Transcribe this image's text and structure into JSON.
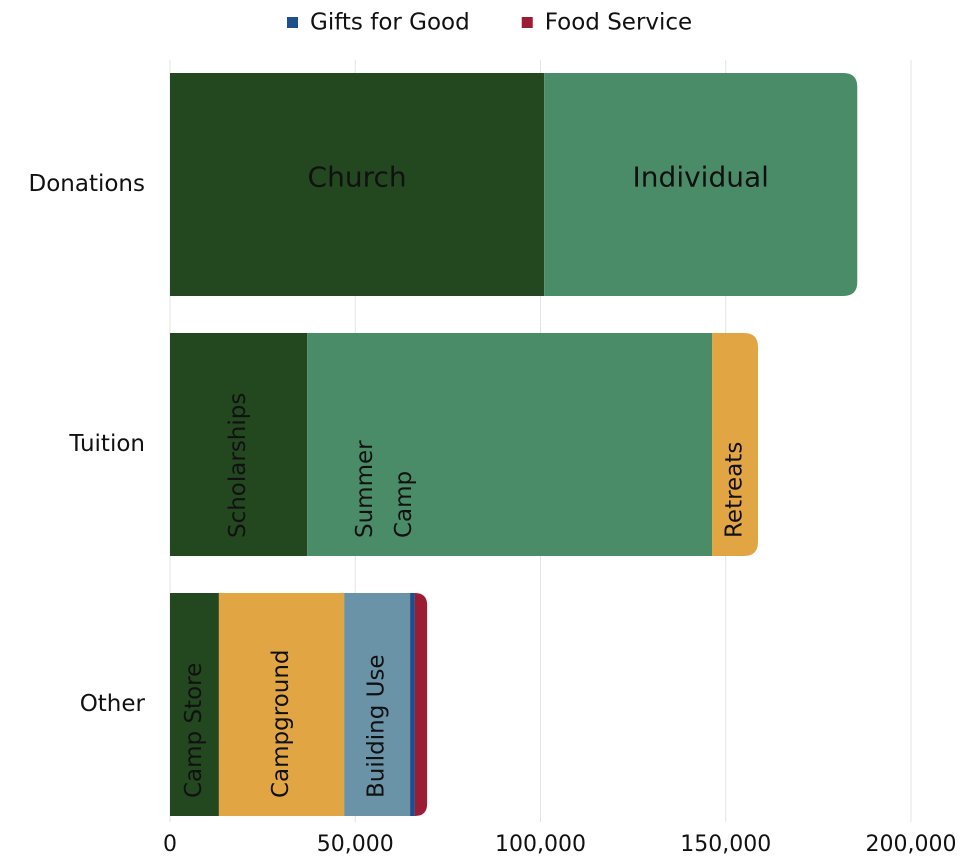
{
  "chart_data": {
    "type": "stacked-bar-horizontal",
    "categories": [
      "Donations",
      "Tuition",
      "Other"
    ],
    "series": [
      {
        "name": "Church",
        "color": "#23471f",
        "legend": false,
        "values": [
          101000,
          null,
          null
        ]
      },
      {
        "name": "Individual",
        "color": "#4a8c68",
        "legend": false,
        "values": [
          84500,
          null,
          null
        ]
      },
      {
        "name": "Scholarships",
        "color": "#23471f",
        "legend": false,
        "values": [
          null,
          37000,
          null
        ]
      },
      {
        "name": "Summer Camp",
        "color": "#4a8c68",
        "legend": false,
        "values": [
          null,
          109300,
          null
        ]
      },
      {
        "name": "Retreats",
        "color": "#e2a543",
        "legend": false,
        "values": [
          null,
          12400,
          null
        ]
      },
      {
        "name": "Camp Store",
        "color": "#23471f",
        "legend": false,
        "values": [
          null,
          null,
          13200
        ]
      },
      {
        "name": "Campground",
        "color": "#e2a543",
        "legend": false,
        "values": [
          null,
          null,
          33800
        ]
      },
      {
        "name": "Building Use",
        "color": "#6b93a8",
        "legend": false,
        "values": [
          null,
          null,
          17800
        ]
      },
      {
        "name": "Gifts for Good",
        "color": "#1f4e8c",
        "legend": true,
        "values": [
          null,
          null,
          1300
        ]
      },
      {
        "name": "Food Service",
        "color": "#9c1c34",
        "legend": true,
        "values": [
          null,
          null,
          3300
        ]
      }
    ],
    "xlim": [
      0,
      210000
    ],
    "xticks": [
      0,
      {
        "value": 50000,
        "label": "50,000"
      },
      {
        "value": 100000,
        "label": "100,000"
      },
      {
        "value": 150000,
        "label": "150,000"
      },
      {
        "value": 200000,
        "label": "200,000"
      }
    ],
    "grid": true,
    "legend_position": "top"
  }
}
